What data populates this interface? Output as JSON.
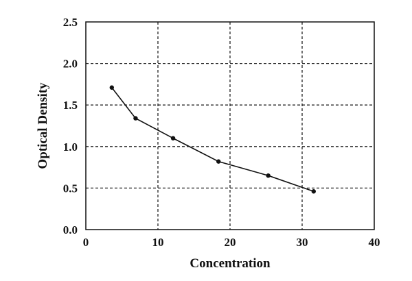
{
  "chart_data": {
    "type": "line",
    "title": "",
    "xlabel": "Concentration",
    "ylabel": "Optical Density",
    "xlim": [
      0,
      40
    ],
    "ylim": [
      0.0,
      2.5
    ],
    "x_ticks": [
      "0",
      "10",
      "20",
      "30",
      "40"
    ],
    "y_ticks": [
      "0.0",
      "0.5",
      "1.0",
      "1.5",
      "2.0",
      "2.5"
    ],
    "grid": true,
    "legend": false,
    "series": [
      {
        "x": [
          3.6,
          6.9,
          12.1,
          18.4,
          25.3,
          31.6
        ],
        "y": [
          1.71,
          1.34,
          1.1,
          0.82,
          0.65,
          0.46
        ]
      }
    ]
  }
}
